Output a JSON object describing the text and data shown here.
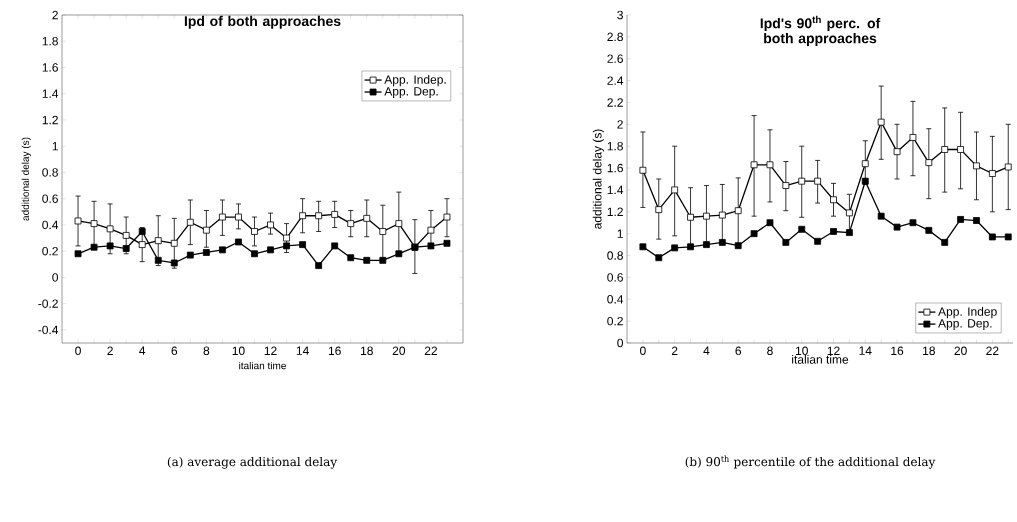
{
  "chart_data": [
    {
      "type": "line",
      "title": "Ipd of both approaches",
      "xlabel": "italian time",
      "ylabel": "additional delay (s)",
      "annotations": [
        "(a) average additional delay"
      ],
      "x": [
        0,
        1,
        2,
        3,
        4,
        5,
        6,
        7,
        8,
        9,
        10,
        11,
        12,
        13,
        14,
        15,
        16,
        17,
        18,
        19,
        20,
        21,
        22,
        23
      ],
      "xlim": [
        -1,
        24
      ],
      "ylim": [
        -0.5,
        2
      ],
      "xticks": [
        0,
        {
          "value": 1,
          "label": null
        },
        2,
        {
          "value": 3,
          "label": null
        },
        4,
        {
          "value": 5,
          "label": null
        },
        6,
        {
          "value": 7,
          "label": null
        },
        8,
        {
          "value": 9,
          "label": null
        },
        10,
        {
          "value": 11,
          "label": null
        },
        12,
        {
          "value": 13,
          "label": null
        },
        14,
        {
          "value": 15,
          "label": null
        },
        16,
        {
          "value": 17,
          "label": null
        },
        18,
        {
          "value": 19,
          "label": null
        },
        20,
        {
          "value": 21,
          "label": null
        },
        22,
        {
          "value": 23,
          "label": null
        }
      ],
      "yticks": [
        -0.4,
        -0.2,
        0,
        0.2,
        0.4,
        0.6,
        0.8,
        1,
        1.2,
        1.4,
        1.6,
        1.8,
        2
      ],
      "legend": "top right",
      "marker": "square",
      "line_style": "solid",
      "series": [
        {
          "name": "App. Indep.",
          "color": "#000000",
          "values": [
            0.43,
            0.41,
            0.37,
            0.32,
            0.25,
            0.28,
            0.26,
            0.42,
            0.36,
            0.46,
            0.46,
            0.35,
            0.4,
            0.3,
            0.47,
            0.47,
            0.48,
            0.41,
            0.45,
            0.35,
            0.41,
            0.23,
            0.36,
            0.46
          ],
          "errors": [
            [
              0.24,
              0.62
            ],
            [
              0.23,
              0.58
            ],
            [
              0.18,
              0.56
            ],
            [
              0.18,
              0.46
            ],
            [
              0.12,
              0.38
            ],
            [
              0.09,
              0.47
            ],
            [
              0.07,
              0.45
            ],
            [
              0.25,
              0.59
            ],
            [
              0.23,
              0.51
            ],
            [
              0.32,
              0.59
            ],
            [
              0.37,
              0.56
            ],
            [
              0.24,
              0.46
            ],
            [
              0.33,
              0.49
            ],
            [
              0.19,
              0.41
            ],
            [
              0.34,
              0.6
            ],
            [
              0.35,
              0.58
            ],
            [
              0.38,
              0.58
            ],
            [
              0.31,
              0.51
            ],
            [
              0.31,
              0.59
            ],
            [
              0.13,
              0.55
            ],
            [
              0.18,
              0.65
            ],
            [
              0.03,
              0.44
            ],
            [
              0.23,
              0.51
            ],
            [
              0.31,
              0.6
            ]
          ]
        },
        {
          "name": "App. Dep.",
          "color": "#000000",
          "values": [
            0.18,
            0.23,
            0.24,
            0.22,
            0.35,
            0.13,
            0.11,
            0.17,
            0.19,
            0.21,
            0.27,
            0.18,
            0.21,
            0.24,
            0.25,
            0.09,
            0.24,
            0.15,
            0.13,
            0.13,
            0.18,
            0.23,
            0.24,
            0.26
          ]
        }
      ]
    },
    {
      "type": "line",
      "title": "Ipd's 90$^{th}$ perc. of both approaches",
      "xlabel": "italian time",
      "ylabel": "additional delay (s)",
      "annotations": [
        "(b) 90$^{th}$ percentile of the additional delay"
      ],
      "x": [
        0,
        1,
        2,
        3,
        4,
        5,
        6,
        7,
        8,
        9,
        10,
        11,
        12,
        13,
        14,
        15,
        16,
        17,
        18,
        19,
        20,
        21,
        22,
        23
      ],
      "xlim": [
        -1,
        23.3
      ],
      "ylim": [
        0,
        3
      ],
      "xticks": [
        0,
        {
          "value": 1,
          "label": null
        },
        2,
        {
          "value": 3,
          "label": null
        },
        4,
        {
          "value": 5,
          "label": null
        },
        6,
        {
          "value": 7,
          "label": null
        },
        8,
        {
          "value": 9,
          "label": null
        },
        10,
        {
          "value": 11,
          "label": null
        },
        12,
        {
          "value": 13,
          "label": null
        },
        14,
        {
          "value": 15,
          "label": null
        },
        16,
        {
          "value": 17,
          "label": null
        },
        18,
        {
          "value": 19,
          "label": null
        },
        20,
        {
          "value": 21,
          "label": null
        },
        22,
        {
          "value": 23,
          "label": null
        }
      ],
      "yticks": [
        0,
        0.2,
        0.4,
        0.6,
        0.8,
        1,
        1.2,
        1.4,
        1.6,
        1.8,
        2,
        2.2,
        2.4,
        2.6,
        2.8,
        3
      ],
      "legend": "bottom right",
      "marker": "square",
      "line_style": "solid",
      "series": [
        {
          "name": "App. Indep",
          "color": "#000000",
          "values": [
            1.58,
            1.22,
            1.4,
            1.15,
            1.16,
            1.17,
            1.21,
            1.63,
            1.63,
            1.44,
            1.48,
            1.48,
            1.31,
            1.19,
            1.64,
            2.02,
            1.75,
            1.88,
            1.65,
            1.77,
            1.77,
            1.62,
            1.55,
            1.61
          ],
          "errors": [
            [
              1.24,
              1.93
            ],
            [
              0.95,
              1.5
            ],
            [
              0.98,
              1.8
            ],
            [
              0.88,
              1.42
            ],
            [
              0.9,
              1.44
            ],
            [
              0.92,
              1.45
            ],
            [
              0.9,
              1.51
            ],
            [
              1.16,
              2.08
            ],
            [
              1.29,
              1.95
            ],
            [
              1.21,
              1.66
            ],
            [
              1.15,
              1.8
            ],
            [
              1.28,
              1.67
            ],
            [
              1.16,
              1.46
            ],
            [
              1.01,
              1.36
            ],
            [
              1.45,
              1.85
            ],
            [
              1.68,
              2.35
            ],
            [
              1.5,
              2.0
            ],
            [
              1.53,
              2.21
            ],
            [
              1.32,
              1.96
            ],
            [
              1.38,
              2.15
            ],
            [
              1.41,
              2.11
            ],
            [
              1.31,
              1.93
            ],
            [
              1.2,
              1.89
            ],
            [
              1.22,
              2.0
            ]
          ]
        },
        {
          "name": "App. Dep.",
          "color": "#000000",
          "values": [
            0.88,
            0.78,
            0.87,
            0.88,
            0.9,
            0.92,
            0.89,
            1.0,
            1.1,
            0.92,
            1.04,
            0.93,
            1.02,
            1.01,
            1.48,
            1.16,
            1.06,
            1.1,
            1.03,
            0.92,
            1.13,
            1.12,
            0.97,
            0.97
          ]
        }
      ]
    }
  ]
}
